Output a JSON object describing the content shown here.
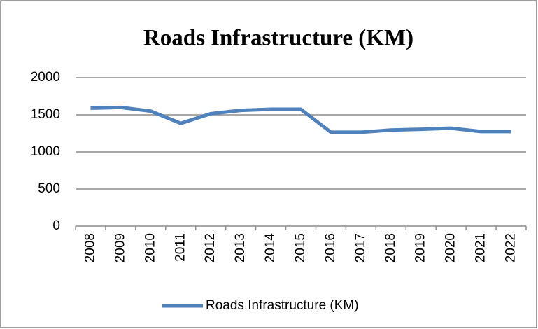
{
  "chart_data": {
    "type": "line",
    "title": "Roads Infrastructure (KM)",
    "categories": [
      "2008",
      "2009",
      "2010",
      "2011",
      "2012",
      "2013",
      "2014",
      "2015",
      "2016",
      "2017",
      "2018",
      "2019",
      "2020",
      "2021",
      "2022"
    ],
    "series": [
      {
        "name": "Roads Infrastructure (KM)",
        "color": "#4f81bd",
        "values": [
          1590,
          1600,
          1550,
          1385,
          1515,
          1560,
          1575,
          1575,
          1265,
          1265,
          1295,
          1305,
          1320,
          1275,
          1275
        ]
      }
    ],
    "ylim": [
      0,
      2000
    ],
    "yticks": [
      0,
      500,
      1000,
      1500,
      2000
    ],
    "grid": true,
    "legend": "bottom"
  }
}
